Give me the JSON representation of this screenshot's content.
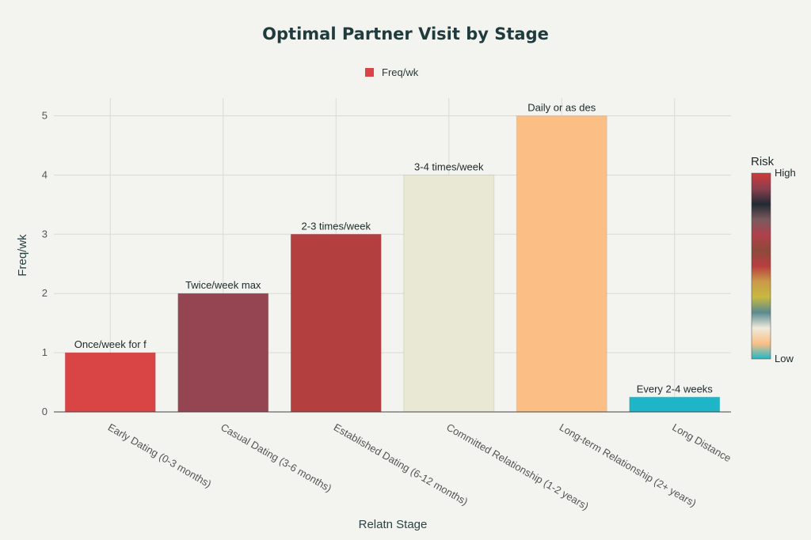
{
  "chart_data": {
    "type": "bar",
    "title": "Optimal Partner Visit by Stage",
    "xlabel": "Relatn Stage",
    "ylabel": "Freq/wk",
    "ylim": [
      0,
      5.3
    ],
    "yticks": [
      0,
      1,
      2,
      3,
      4,
      5
    ],
    "grid": true,
    "legend": {
      "placement": "top-center",
      "entries": [
        "Freq/wk"
      ],
      "color": "#d94545"
    },
    "categories": [
      "Early Dating (0-3 months)",
      "Casual Dating (3-6 months)",
      "Established Dating (6-12 months)",
      "Committed Relationship (1-2 years)",
      "Long-term Relationship (2+ years)",
      "Long Distance"
    ],
    "series": [
      {
        "name": "Freq/wk",
        "values": [
          1,
          2,
          3,
          4,
          5,
          0.25
        ]
      }
    ],
    "data_labels": [
      "Once/week for f",
      "Twice/week max",
      "2-3 times/week",
      "3-4 times/week",
      "Daily or as des",
      "Every 2-4 weeks"
    ],
    "bar_colors": [
      "#d94545",
      "#954551",
      "#b43f3f",
      "#e8e8d5",
      "#fbbf86",
      "#1fb5c8"
    ],
    "colorbar": {
      "title": "Risk",
      "high_label": "High",
      "low_label": "Low",
      "stops": [
        "#d03a3a",
        "#8a3f4e",
        "#222a33",
        "#7a5a5e",
        "#b0404a",
        "#8c4a3a",
        "#b83e3e",
        "#c99a48",
        "#c8b840",
        "#5a8a90",
        "#eeeadb",
        "#fbbf86",
        "#20b8c8"
      ]
    }
  }
}
